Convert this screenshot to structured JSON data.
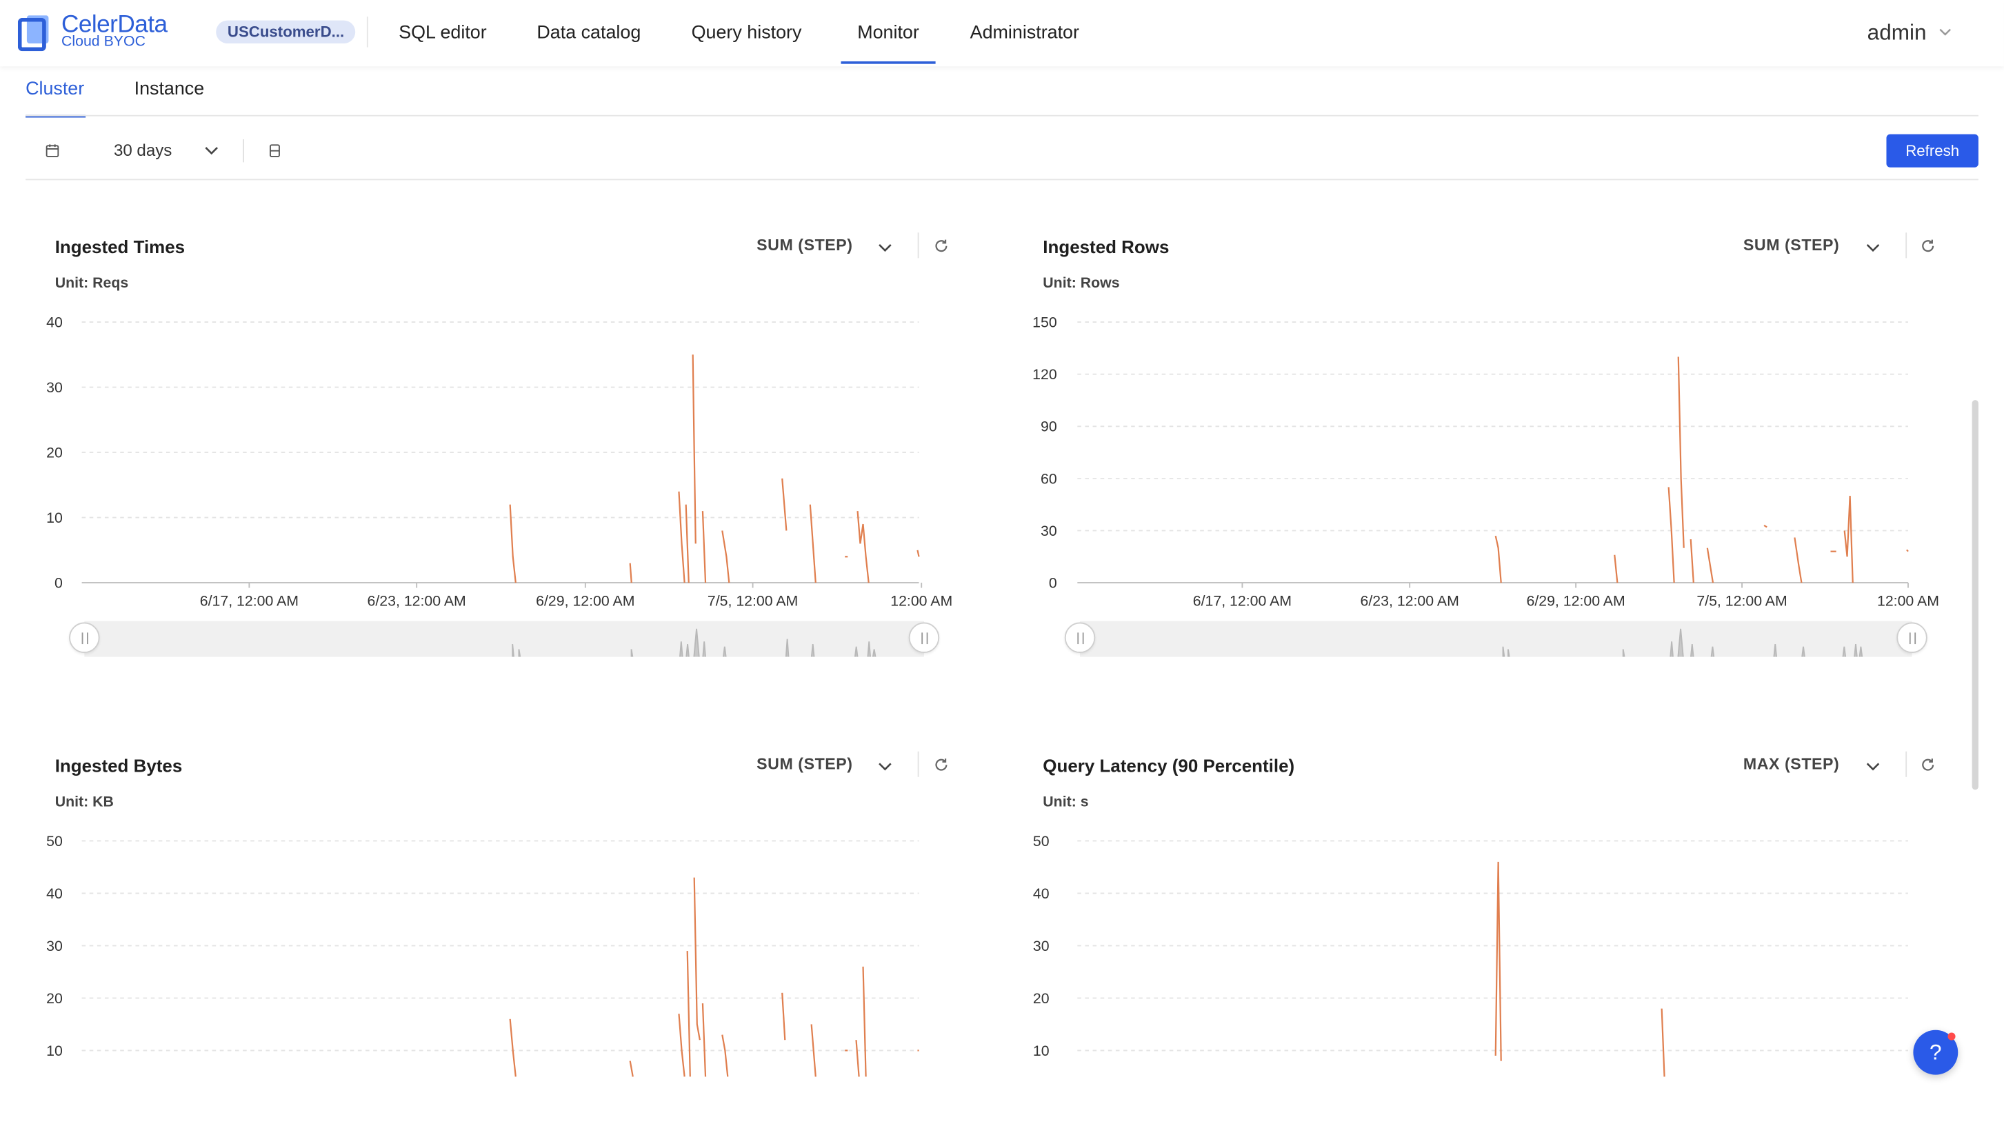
{
  "brand": {
    "title": "CelerData",
    "subtitle": "Cloud BYOC",
    "accent": "#2d5fd8"
  },
  "cluster_pill": "USCustomerD...",
  "nav": [
    {
      "label": "SQL editor"
    },
    {
      "label": "Data catalog"
    },
    {
      "label": "Query history"
    },
    {
      "label": "Monitor",
      "active": true
    },
    {
      "label": "Administrator"
    }
  ],
  "user": "admin",
  "subtabs": [
    {
      "label": "Cluster",
      "active": true
    },
    {
      "label": "Instance"
    }
  ],
  "toolbar": {
    "range": "30 days",
    "refresh_label": "Refresh"
  },
  "help_label": "?",
  "icons": [
    "calendar-icon",
    "chevron-down-icon",
    "compact-icon",
    "refresh-icon",
    "question-icon"
  ],
  "chart_data": [
    {
      "type": "line",
      "title": "Ingested Times",
      "unit_label": "Unit: Reqs",
      "aggregation": "SUM (STEP)",
      "ylim": [
        0,
        40
      ],
      "yticks": [
        "0",
        "10",
        "20",
        "30",
        "40"
      ],
      "xticks": [
        "6/17, 12:00 AM",
        "6/23, 12:00 AM",
        "6/29, 12:00 AM",
        "7/5, 12:00 AM",
        "12:00 AM"
      ],
      "xlim": [
        0,
        30
      ],
      "grid": true,
      "color": "#e07f4f",
      "series": [
        {
          "segments": [
            [
              [
                15.35,
                12
              ],
              [
                15.4,
                8
              ],
              [
                15.45,
                4
              ],
              [
                15.55,
                0
              ]
            ],
            [
              [
                19.65,
                3
              ],
              [
                19.7,
                0
              ]
            ],
            [
              [
                21.4,
                14
              ],
              [
                21.5,
                6
              ],
              [
                21.6,
                0
              ]
            ],
            [
              [
                21.65,
                12
              ],
              [
                21.75,
                0
              ]
            ],
            [
              [
                21.9,
                35
              ],
              [
                21.95,
                20
              ],
              [
                22,
                6
              ]
            ],
            [
              [
                22.25,
                11
              ],
              [
                22.35,
                0
              ]
            ],
            [
              [
                22.95,
                8
              ],
              [
                23.1,
                4
              ],
              [
                23.2,
                0
              ]
            ],
            [
              [
                25.1,
                16
              ],
              [
                25.25,
                8
              ]
            ],
            [
              [
                26.1,
                12
              ],
              [
                26.3,
                0
              ]
            ],
            [
              [
                27.35,
                4
              ],
              [
                27.45,
                4
              ]
            ],
            [
              [
                27.8,
                11
              ],
              [
                27.9,
                6
              ],
              [
                28,
                9
              ],
              [
                28.1,
                4
              ],
              [
                28.2,
                0
              ]
            ],
            [
              [
                29.95,
                5
              ],
              [
                30,
                4
              ]
            ]
          ]
        }
      ]
    },
    {
      "type": "line",
      "title": "Ingested Rows",
      "unit_label": "Unit: Rows",
      "aggregation": "SUM (STEP)",
      "ylim": [
        0,
        150
      ],
      "yticks": [
        "0",
        "30",
        "60",
        "90",
        "120",
        "150"
      ],
      "xticks": [
        "6/17, 12:00 AM",
        "6/23, 12:00 AM",
        "6/29, 12:00 AM",
        "7/5, 12:00 AM",
        "12:00 AM"
      ],
      "xlim": [
        0,
        30
      ],
      "grid": true,
      "color": "#e07f4f",
      "series": [
        {
          "segments": [
            [
              [
                15.1,
                27
              ],
              [
                15.2,
                20
              ],
              [
                15.3,
                0
              ]
            ],
            [
              [
                19.4,
                16
              ],
              [
                19.5,
                0
              ]
            ],
            [
              [
                21.35,
                55
              ],
              [
                21.45,
                30
              ],
              [
                21.55,
                0
              ]
            ],
            [
              [
                21.7,
                130
              ],
              [
                21.8,
                60
              ],
              [
                21.9,
                20
              ]
            ],
            [
              [
                22.15,
                25
              ],
              [
                22.25,
                0
              ]
            ],
            [
              [
                22.75,
                20
              ],
              [
                22.85,
                10
              ],
              [
                22.95,
                0
              ]
            ],
            [
              [
                24.8,
                33
              ],
              [
                24.9,
                32
              ]
            ],
            [
              [
                25.9,
                26
              ],
              [
                26.05,
                10
              ],
              [
                26.15,
                0
              ]
            ],
            [
              [
                27.2,
                18
              ],
              [
                27.4,
                18
              ]
            ],
            [
              [
                27.7,
                30
              ],
              [
                27.8,
                15
              ],
              [
                27.9,
                50
              ],
              [
                28,
                0
              ]
            ],
            [
              [
                29.95,
                19
              ],
              [
                30,
                18
              ]
            ]
          ]
        }
      ]
    },
    {
      "type": "line",
      "title": "Ingested Bytes",
      "unit_label": "Unit: KB",
      "aggregation": "SUM (STEP)",
      "ylim": [
        0,
        50
      ],
      "yticks": [
        "10",
        "20",
        "30",
        "40",
        "50"
      ],
      "xlim": [
        0,
        30
      ],
      "grid": true,
      "color": "#e07f4f",
      "series": [
        {
          "segments": [
            [
              [
                15.35,
                16
              ],
              [
                15.45,
                10
              ],
              [
                15.55,
                5
              ]
            ],
            [
              [
                19.65,
                8
              ],
              [
                19.75,
                5
              ]
            ],
            [
              [
                21.4,
                17
              ],
              [
                21.5,
                10
              ],
              [
                21.6,
                5
              ]
            ],
            [
              [
                21.7,
                29
              ],
              [
                21.8,
                5
              ]
            ],
            [
              [
                21.95,
                43
              ],
              [
                22.05,
                15
              ],
              [
                22.15,
                12
              ]
            ],
            [
              [
                22.25,
                19
              ],
              [
                22.35,
                5
              ]
            ],
            [
              [
                22.95,
                13
              ],
              [
                23.05,
                10
              ],
              [
                23.15,
                5
              ]
            ],
            [
              [
                25.1,
                21
              ],
              [
                25.2,
                12
              ]
            ],
            [
              [
                26.15,
                15
              ],
              [
                26.3,
                5
              ]
            ],
            [
              [
                27.35,
                10
              ],
              [
                27.45,
                10
              ]
            ],
            [
              [
                27.75,
                12
              ],
              [
                27.85,
                5
              ]
            ],
            [
              [
                28,
                26
              ],
              [
                28.1,
                5
              ]
            ],
            [
              [
                29.95,
                10
              ],
              [
                30,
                10
              ]
            ]
          ]
        }
      ]
    },
    {
      "type": "line",
      "title": "Query Latency (90 Percentile)",
      "unit_label": "Unit: s",
      "aggregation": "MAX (STEP)",
      "ylim": [
        0,
        50
      ],
      "yticks": [
        "10",
        "20",
        "30",
        "40",
        "50"
      ],
      "xlim": [
        0,
        30
      ],
      "grid": true,
      "color": "#e07f4f",
      "series": [
        {
          "segments": [
            [
              [
                15.1,
                9
              ],
              [
                15.2,
                46
              ],
              [
                15.3,
                8
              ]
            ],
            [
              [
                21.1,
                18
              ],
              [
                21.2,
                5
              ]
            ]
          ]
        }
      ]
    }
  ]
}
